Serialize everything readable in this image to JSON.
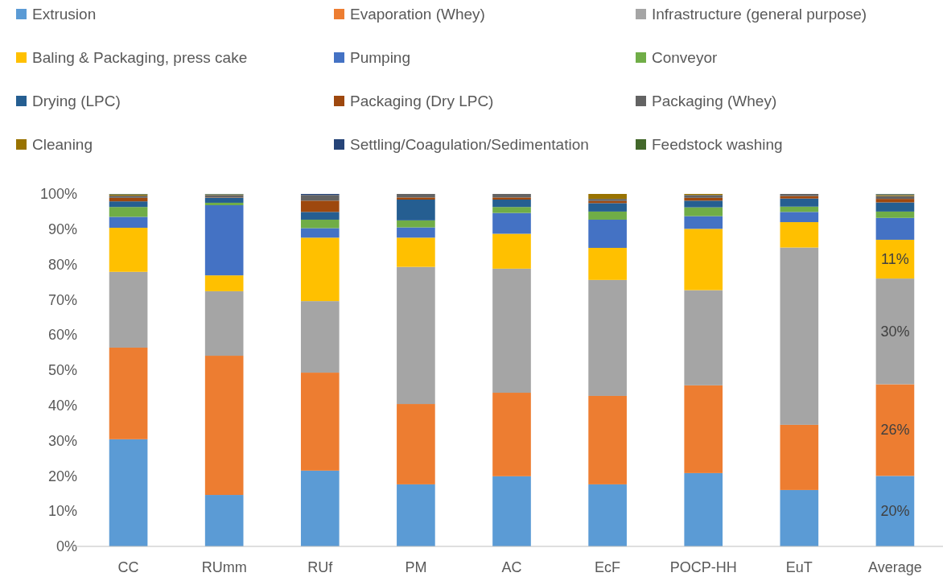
{
  "chart_data": {
    "type": "bar",
    "stacked": true,
    "legend": "top",
    "grid": false,
    "categories": [
      "CC",
      "RUmm",
      "RUf",
      "PM",
      "AC",
      "EcF",
      "POCP-HH",
      "EuT",
      "Average"
    ],
    "ylim": [
      0,
      100
    ],
    "yticks": [
      {
        "value": 0,
        "label": "0%"
      },
      {
        "value": 10,
        "label": "10%"
      },
      {
        "value": 20,
        "label": "20%"
      },
      {
        "value": 30,
        "label": "30%"
      },
      {
        "value": 40,
        "label": "40%"
      },
      {
        "value": 50,
        "label": "50%"
      },
      {
        "value": 60,
        "label": "60%"
      },
      {
        "value": 70,
        "label": "70%"
      },
      {
        "value": 80,
        "label": "80%"
      },
      {
        "value": 90,
        "label": "90%"
      },
      {
        "value": 100,
        "label": "100%"
      }
    ],
    "series": [
      {
        "name": "Extrusion",
        "color": "#5b9bd5",
        "values": [
          30.4,
          14.6,
          21.5,
          17.6,
          19.9,
          17.6,
          20.8,
          16.0,
          20
        ],
        "value_labels": [
          null,
          null,
          null,
          null,
          null,
          null,
          null,
          null,
          "20%"
        ]
      },
      {
        "name": "Evaporation (Whey)",
        "color": "#ed7d31",
        "values": [
          26,
          39.5,
          27.8,
          22.8,
          23.7,
          25.1,
          24.9,
          18.5,
          26
        ],
        "value_labels": [
          null,
          null,
          null,
          null,
          null,
          null,
          null,
          null,
          "26%"
        ]
      },
      {
        "name": "Infrastructure (general purpose)",
        "color": "#a5a5a5",
        "values": [
          21.5,
          18.3,
          20.3,
          38.9,
          35.2,
          32.9,
          27.0,
          50.3,
          30
        ],
        "value_labels": [
          null,
          null,
          null,
          null,
          null,
          null,
          null,
          null,
          "30%"
        ]
      },
      {
        "name": "Baling & Packaging, press cake",
        "color": "#ffc000",
        "values": [
          12.5,
          4.5,
          18,
          8.3,
          9.9,
          9.1,
          17.4,
          7.2,
          11
        ],
        "value_labels": [
          null,
          null,
          null,
          null,
          null,
          null,
          null,
          null,
          "11%"
        ]
      },
      {
        "name": "Pumping",
        "color": "#4472c4",
        "values": [
          3.1,
          19.9,
          2.7,
          2.9,
          5.9,
          8.0,
          3.6,
          2.9,
          6.2
        ]
      },
      {
        "name": "Conveyor",
        "color": "#70ad47",
        "values": [
          2.8,
          0.7,
          2.4,
          2.0,
          1.7,
          2.3,
          2.5,
          1.5,
          1.8
        ]
      },
      {
        "name": "Drying (LPC)",
        "color": "#255e91",
        "values": [
          1.6,
          1.4,
          2.2,
          5.9,
          2.1,
          2.4,
          1.9,
          2.3,
          2.6
        ]
      },
      {
        "name": "Packaging (Dry LPC)",
        "color": "#9e480e",
        "values": [
          1.0,
          0.1,
          3.2,
          0.6,
          0.6,
          0.6,
          0.8,
          0.7,
          1.0
        ]
      },
      {
        "name": "Packaging (Whey)",
        "color": "#636363",
        "values": [
          0.6,
          0.7,
          1.6,
          1.0,
          1.0,
          0.6,
          0.8,
          0.6,
          0.8
        ]
      },
      {
        "name": "Cleaning",
        "color": "#997300",
        "values": [
          0.3,
          0.1,
          0,
          0,
          0,
          1.4,
          0.3,
          0,
          0.3
        ]
      },
      {
        "name": "Settling/Coagulation/Sedimentation",
        "color": "#264478",
        "values": [
          0.1,
          0.1,
          0.3,
          0,
          0,
          0,
          0,
          0,
          0.2
        ]
      },
      {
        "name": "Feedstock washing",
        "color": "#43682b",
        "values": [
          0.1,
          0.1,
          0,
          0,
          0,
          0,
          0,
          0,
          0.1
        ]
      }
    ]
  }
}
